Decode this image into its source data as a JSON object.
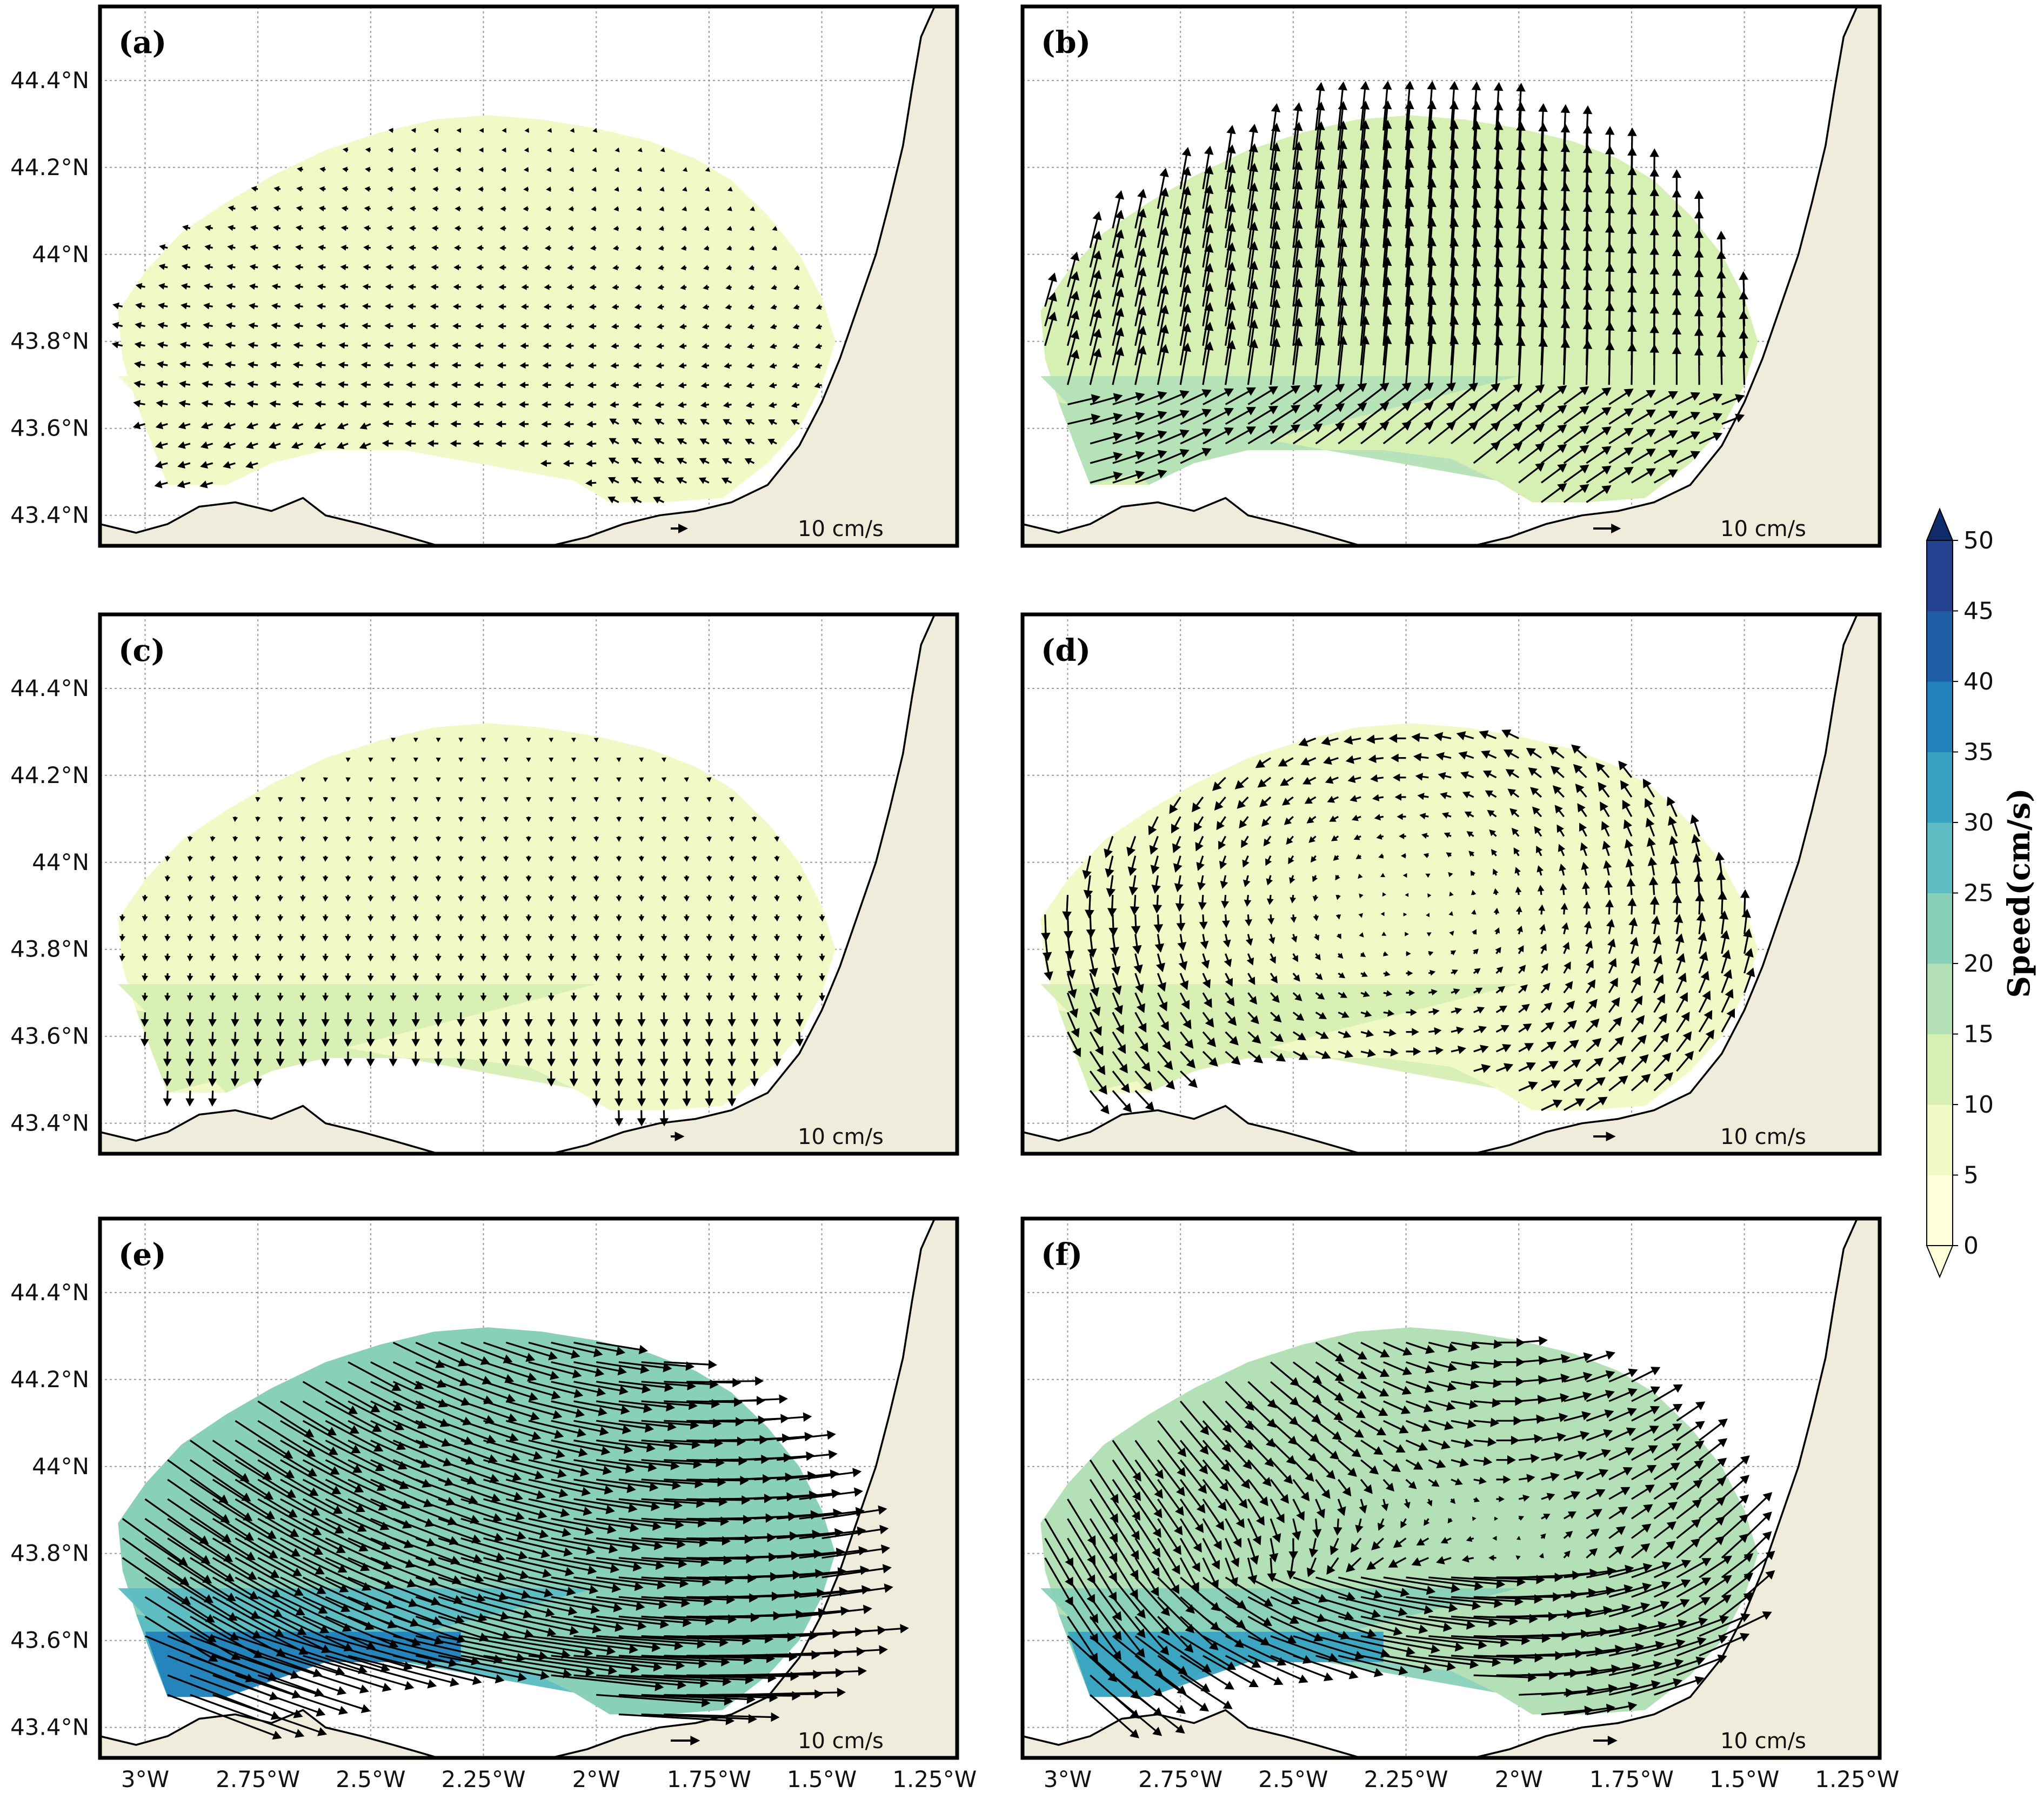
{
  "figure": {
    "panels": [
      {
        "id": "a",
        "label": "(a)",
        "pattern": "eddy",
        "speed_level": 1,
        "arrow_scale": 1.0,
        "show_lat_labels": true,
        "show_lon_labels": false
      },
      {
        "id": "b",
        "label": "(b)",
        "pattern": "northward",
        "speed_level": 3,
        "arrow_scale": 1.6,
        "show_lat_labels": false,
        "show_lon_labels": false
      },
      {
        "id": "c",
        "label": "(c)",
        "pattern": "weak-south",
        "speed_level": 2,
        "arrow_scale": 0.8,
        "show_lat_labels": true,
        "show_lon_labels": false
      },
      {
        "id": "d",
        "label": "(d)",
        "pattern": "cyclonic",
        "speed_level": 2,
        "arrow_scale": 1.3,
        "show_lat_labels": false,
        "show_lon_labels": false
      },
      {
        "id": "e",
        "label": "(e)",
        "pattern": "strong-east",
        "speed_level": 5,
        "arrow_scale": 1.7,
        "show_lat_labels": true,
        "show_lon_labels": true
      },
      {
        "id": "f",
        "label": "(f)",
        "pattern": "dipole",
        "speed_level": 4,
        "arrow_scale": 1.4,
        "show_lat_labels": false,
        "show_lon_labels": true
      }
    ],
    "reference_arrow_label": "10 cm/s",
    "lat_ticks": [
      {
        "value": 43.4,
        "label": "43.4°N"
      },
      {
        "value": 43.6,
        "label": "43.6°N"
      },
      {
        "value": 43.8,
        "label": "43.8°N"
      },
      {
        "value": 44.0,
        "label": "44°N"
      },
      {
        "value": 44.2,
        "label": "44.2°N"
      },
      {
        "value": 44.4,
        "label": "44.4°N"
      }
    ],
    "lon_ticks": [
      {
        "value": -3.0,
        "label": "3°W"
      },
      {
        "value": -2.75,
        "label": "2.75°W"
      },
      {
        "value": -2.5,
        "label": "2.5°W"
      },
      {
        "value": -2.25,
        "label": "2.25°W"
      },
      {
        "value": -2.0,
        "label": "2°W"
      },
      {
        "value": -1.75,
        "label": "1.75°W"
      },
      {
        "value": -1.5,
        "label": "1.5°W"
      },
      {
        "value": -1.25,
        "label": "1.25°W"
      }
    ],
    "map_extent": {
      "lon_min": -3.1,
      "lon_max": -1.2,
      "lat_min": 43.33,
      "lat_max": 44.57
    },
    "colorbar": {
      "title": "Speed(cm/s)",
      "levels": [
        0,
        5,
        10,
        15,
        20,
        25,
        30,
        35,
        40,
        45,
        50
      ],
      "tick_labels": [
        "0",
        "5",
        "10",
        "15",
        "20",
        "25",
        "30",
        "35",
        "40",
        "45",
        "50"
      ],
      "colors": [
        "#fefed9",
        "#f1f9c6",
        "#d6efb3",
        "#b3e0b6",
        "#89d0bb",
        "#5cbcc2",
        "#38a2c2",
        "#2281bb",
        "#205ea6",
        "#22418f",
        "#102b6a"
      ]
    },
    "colors": {
      "land": "#efecdc",
      "coast": "#000000",
      "arrow": "#000000",
      "grid": "#9a9a9a"
    }
  }
}
